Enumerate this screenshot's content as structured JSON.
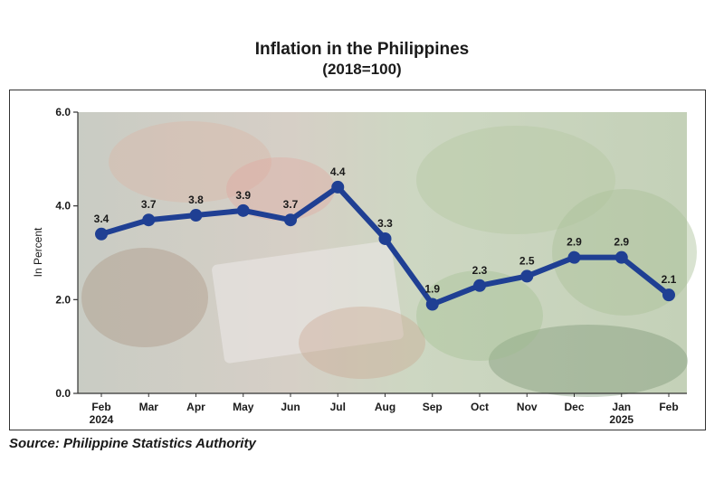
{
  "chart_data": {
    "type": "line",
    "title": "Inflation in the Philippines",
    "subtitle": "(2018=100)",
    "ylabel": "In Percent",
    "xlabel": "",
    "ylim": [
      0,
      6
    ],
    "yticks": [
      "0.0",
      "2.0",
      "4.0",
      "6.0"
    ],
    "yticks_values": [
      0,
      2,
      4,
      6
    ],
    "categories": [
      "Feb",
      "Mar",
      "Apr",
      "May",
      "Jun",
      "Jul",
      "Aug",
      "Sep",
      "Oct",
      "Nov",
      "Dec",
      "Jan",
      "Feb"
    ],
    "year_labels": [
      "2024",
      "",
      "",
      "",
      "",
      "",
      "",
      "",
      "",
      "",
      "",
      "2025",
      ""
    ],
    "values": [
      3.4,
      3.7,
      3.8,
      3.9,
      3.7,
      4.4,
      3.3,
      1.9,
      2.3,
      2.5,
      2.9,
      2.9,
      2.1
    ],
    "data_labels": [
      "3.4",
      "3.7",
      "3.8",
      "3.9",
      "3.7",
      "4.4",
      "3.3",
      "1.9",
      "2.3",
      "2.5",
      "2.9",
      "2.9",
      "2.1"
    ],
    "grid": false,
    "line_color": "#1f3f93",
    "background": "photo of vegetables and peso banknotes"
  },
  "source": "Source: Philippine Statistics Authority",
  "colors": {
    "line": "#1f3f93",
    "marker": "#1f3f93",
    "frame": "#333333"
  }
}
